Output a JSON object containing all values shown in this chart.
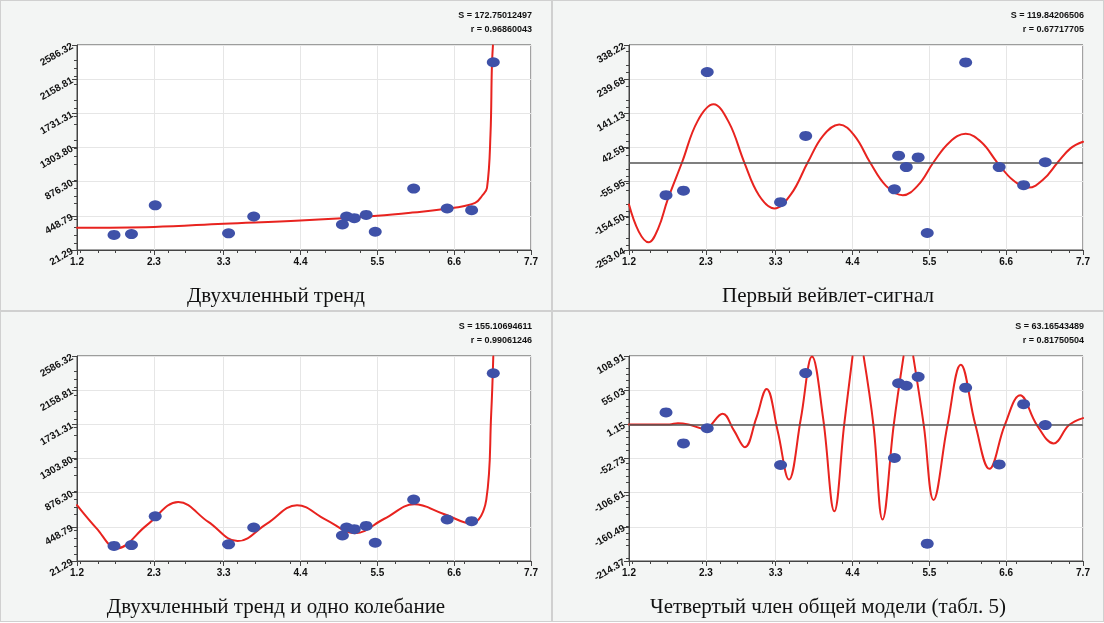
{
  "chart_data": [
    {
      "type": "scatter",
      "title": "Двухчленный тренд",
      "annotations": [
        "S = 172.75012497",
        "r = 0.96860043"
      ],
      "xlim": [
        1.2,
        7.7
      ],
      "xticks": [
        1.2,
        2.3,
        3.3,
        4.4,
        5.5,
        6.6,
        7.7
      ],
      "ylim": [
        21.29,
        2586.32
      ],
      "yticks": [
        21.29,
        448.79,
        {
          "value": 876.3,
          "label": "876.30"
        },
        {
          "value": 1303.8,
          "label": "1303.80"
        },
        1731.31,
        2158.81,
        2586.32
      ],
      "grid": true,
      "marker": "circle",
      "series": [
        {
          "color": "#3f51a8",
          "x": [
            1.73,
            1.98,
            2.32,
            3.37,
            3.73,
            5.0,
            5.06,
            5.17,
            5.34,
            5.47,
            6.02,
            6.5,
            6.85,
            7.16
          ],
          "values": [
            210,
            220,
            580,
            230,
            440,
            340,
            440,
            420,
            460,
            250,
            790,
            540,
            520,
            2370
          ]
        },
        {
          "type": "line",
          "color": "#e8231f",
          "marker": "none",
          "line_style": "solid",
          "x": [
            1.2,
            2.3,
            3.3,
            4.4,
            5.5,
            6.0,
            6.6,
            6.9,
            7.0,
            7.07,
            7.12,
            7.14,
            7.155
          ],
          "values": [
            300,
            310,
            350,
            390,
            450,
            490,
            550,
            610,
            700,
            800,
            1470,
            2310,
            2580
          ]
        }
      ]
    },
    {
      "type": "scatter",
      "title": "Первый вейвлет-сигнал",
      "annotations": [
        "S = 119.84206506",
        "r = 0.67717705"
      ],
      "xlim": [
        1.2,
        7.7
      ],
      "xticks": [
        1.2,
        2.3,
        3.3,
        4.4,
        5.5,
        6.6,
        7.7
      ],
      "ylim": [
        -253.04,
        338.22
      ],
      "yticks": [
        -253.04,
        {
          "value": -154.5,
          "label": "-154.50"
        },
        -55.95,
        42.59,
        141.13,
        239.68,
        338.22
      ],
      "grid": true,
      "marker": "circle",
      "ref_lines": [
        {
          "axis": "y",
          "value": 0,
          "color": "#555555"
        }
      ],
      "series": [
        {
          "color": "#3f51a8",
          "x": [
            1.73,
            1.98,
            2.32,
            3.37,
            3.73,
            5.0,
            5.06,
            5.17,
            5.34,
            5.47,
            6.02,
            6.5,
            6.85,
            7.16
          ],
          "values": [
            -95,
            -82,
            260,
            -115,
            76,
            -78,
            19,
            -14,
            14,
            -204,
            288,
            -14,
            -66,
            0
          ]
        },
        {
          "type": "line",
          "color": "#e8231f",
          "marker": "none",
          "line_style": "solid",
          "x": [
            1.2,
            1.34,
            1.48,
            1.62,
            1.75,
            1.96,
            2.18,
            2.41,
            2.63,
            2.85,
            3.06,
            3.28,
            3.52,
            3.76,
            3.98,
            4.21,
            4.43,
            4.65,
            4.88,
            5.12,
            5.34,
            5.56,
            5.79,
            6.02,
            6.25,
            6.47,
            6.7,
            6.92,
            7.13,
            7.34,
            7.52,
            7.7
          ],
          "values": [
            -122,
            -200,
            -231,
            -190,
            -110,
            0,
            118,
            167,
            115,
            0,
            -95,
            -133,
            -92,
            0,
            77,
            109,
            76,
            0,
            -68,
            -95,
            -66,
            0,
            58,
            82,
            57,
            0,
            -52,
            -73,
            -50,
            0,
            40,
            59
          ]
        }
      ]
    },
    {
      "type": "scatter",
      "title": "Двухчленный тренд и одно колебание",
      "annotations": [
        "S = 155.10694611",
        "r = 0.99061246"
      ],
      "xlim": [
        1.2,
        7.7
      ],
      "xticks": [
        1.2,
        2.3,
        3.3,
        4.4,
        5.5,
        6.6,
        7.7
      ],
      "ylim": [
        21.29,
        2586.32
      ],
      "yticks": [
        21.29,
        448.79,
        {
          "value": 876.3,
          "label": "876.30"
        },
        {
          "value": 1303.8,
          "label": "1303.80"
        },
        1731.31,
        2158.81,
        2586.32
      ],
      "grid": true,
      "marker": "circle",
      "series": [
        {
          "color": "#3f51a8",
          "x": [
            1.73,
            1.98,
            2.32,
            3.37,
            3.73,
            5.0,
            5.06,
            5.17,
            5.34,
            5.47,
            6.02,
            6.5,
            6.85,
            7.16
          ],
          "values": [
            210,
            220,
            580,
            230,
            440,
            340,
            440,
            420,
            460,
            250,
            790,
            540,
            520,
            2370
          ]
        },
        {
          "type": "line",
          "color": "#e8231f",
          "marker": "none",
          "line_style": "solid",
          "x": [
            1.2,
            1.48,
            1.77,
            2.2,
            2.65,
            3.08,
            3.5,
            3.92,
            4.35,
            4.76,
            5.18,
            5.6,
            6.03,
            6.45,
            6.84,
            7.06,
            7.13,
            7.16
          ],
          "values": [
            720,
            430,
            180,
            470,
            760,
            510,
            270,
            490,
            720,
            540,
            370,
            550,
            730,
            610,
            490,
            790,
            1860,
            2580
          ]
        }
      ]
    },
    {
      "type": "scatter",
      "title": "Четвертый член общей модели (табл. 5)",
      "annotations": [
        "S = 63.16543489",
        "r = 0.81750504"
      ],
      "xlim": [
        1.2,
        7.7
      ],
      "xticks": [
        1.2,
        2.3,
        3.3,
        4.4,
        5.5,
        6.6,
        7.7
      ],
      "ylim": [
        -214.37,
        108.91
      ],
      "yticks": [
        -214.37,
        -160.49,
        -106.61,
        -52.73,
        1.15,
        55.03,
        108.91
      ],
      "grid": true,
      "marker": "circle",
      "ref_lines": [
        {
          "axis": "y",
          "value": 1.15,
          "color": "#555555"
        }
      ],
      "series": [
        {
          "color": "#3f51a8",
          "x": [
            1.73,
            1.98,
            2.32,
            3.37,
            3.73,
            5.0,
            5.06,
            5.17,
            5.34,
            5.47,
            6.02,
            6.5,
            6.85,
            7.16
          ],
          "values": [
            20,
            -29,
            -5,
            -63,
            82,
            -52,
            66,
            62,
            76,
            -187,
            59,
            -62,
            33,
            0
          ]
        },
        {
          "type": "line",
          "color": "#e8231f",
          "marker": "none",
          "line_style": "solid",
          "x": [
            1.2,
            1.78,
            1.9,
            2.05,
            2.28,
            2.54,
            2.7,
            2.86,
            3.02,
            3.17,
            3.33,
            3.49,
            3.66,
            3.82,
            3.98,
            4.14,
            4.28,
            4.4,
            4.48,
            4.56,
            4.7,
            4.83,
            4.99,
            5.13,
            5.2,
            5.27,
            5.42,
            5.56,
            5.76,
            5.95,
            6.16,
            6.36,
            6.58,
            6.8,
            7.04,
            7.28,
            7.5,
            7.7
          ],
          "values": [
            1,
            1,
            3,
            1,
            -6,
            18,
            -8,
            -35,
            10,
            57,
            -10,
            -86,
            10,
            108,
            10,
            -136,
            0,
            108,
            null,
            108,
            0,
            -149,
            0,
            108,
            null,
            108,
            0,
            -118,
            0,
            95,
            0,
            -69,
            0,
            47,
            0,
            -29,
            0,
            11
          ]
        }
      ]
    }
  ]
}
